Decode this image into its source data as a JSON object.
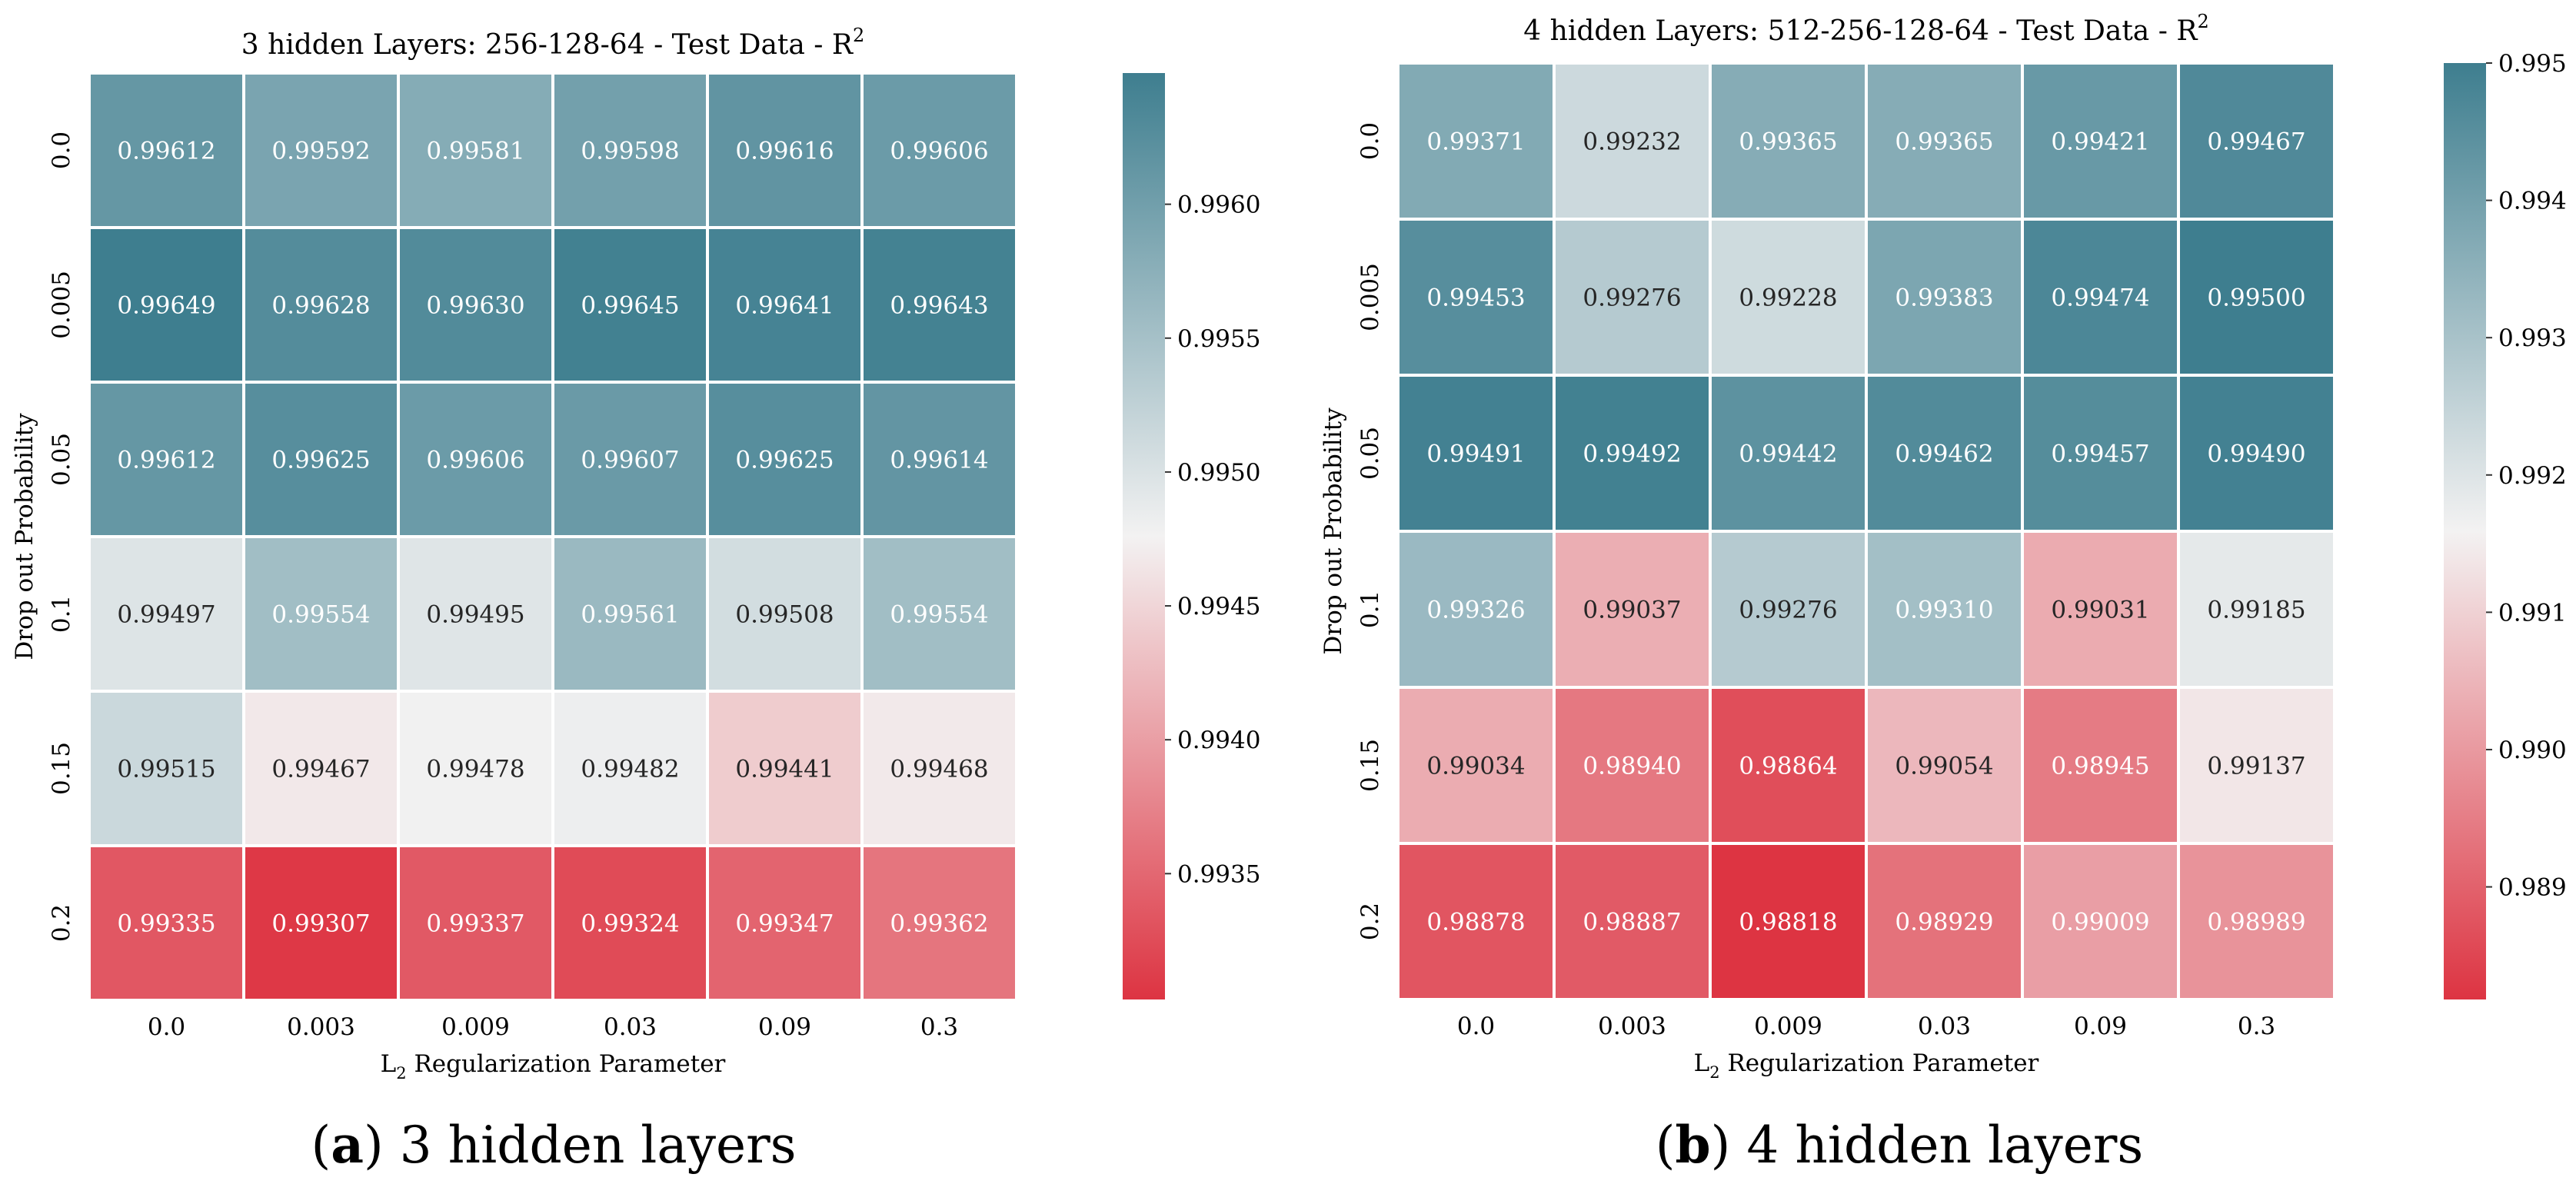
{
  "chart_data": [
    {
      "type": "heatmap",
      "title": "3 hidden Layers: 256-128-64 - Test Data - R",
      "title_superscript": "2",
      "xlabel_prefix": "L",
      "xlabel_subscript": "2",
      "xlabel_suffix": " Regularization Parameter",
      "ylabel": "Drop out Probability",
      "x_categories": [
        "0.0",
        "0.003",
        "0.009",
        "0.03",
        "0.09",
        "0.3"
      ],
      "y_categories": [
        "0.0",
        "0.005",
        "0.05",
        "0.1",
        "0.15",
        "0.2"
      ],
      "values": [
        [
          "0.99612",
          "0.99592",
          "0.99581",
          "0.99598",
          "0.99616",
          "0.99606"
        ],
        [
          "0.99649",
          "0.99628",
          "0.99630",
          "0.99645",
          "0.99641",
          "0.99643"
        ],
        [
          "0.99612",
          "0.99625",
          "0.99606",
          "0.99607",
          "0.99625",
          "0.99614"
        ],
        [
          "0.99497",
          "0.99554",
          "0.99495",
          "0.99561",
          "0.99508",
          "0.99554"
        ],
        [
          "0.99515",
          "0.99467",
          "0.99478",
          "0.99482",
          "0.99441",
          "0.99468"
        ],
        [
          "0.99335",
          "0.99307",
          "0.99337",
          "0.99324",
          "0.99347",
          "0.99362"
        ]
      ],
      "colorbar_range": [
        0.99303,
        0.99649
      ],
      "colorbar_ticks": [
        "0.9935",
        "0.9940",
        "0.9945",
        "0.9950",
        "0.9955",
        "0.9960"
      ],
      "colormap": [
        "#dd3442",
        "#f3f2f2",
        "#3e7e8f"
      ],
      "caption_letter": "a",
      "caption_text": " 3 hidden layers"
    },
    {
      "type": "heatmap",
      "title": "4 hidden Layers: 512-256-128-64 - Test Data - R",
      "title_superscript": "2",
      "xlabel_prefix": "L",
      "xlabel_subscript": "2",
      "xlabel_suffix": " Regularization Parameter",
      "ylabel": "Drop out Probability",
      "x_categories": [
        "0.0",
        "0.003",
        "0.009",
        "0.03",
        "0.09",
        "0.3"
      ],
      "y_categories": [
        "0.0",
        "0.005",
        "0.05",
        "0.1",
        "0.15",
        "0.2"
      ],
      "values": [
        [
          "0.99371",
          "0.99232",
          "0.99365",
          "0.99365",
          "0.99421",
          "0.99467"
        ],
        [
          "0.99453",
          "0.99276",
          "0.99228",
          "0.99383",
          "0.99474",
          "0.99500"
        ],
        [
          "0.99491",
          "0.99492",
          "0.99442",
          "0.99462",
          "0.99457",
          "0.99490"
        ],
        [
          "0.99326",
          "0.99037",
          "0.99276",
          "0.99310",
          "0.99031",
          "0.99185"
        ],
        [
          "0.99034",
          "0.98940",
          "0.98864",
          "0.99054",
          "0.98945",
          "0.99137"
        ],
        [
          "0.98878",
          "0.98887",
          "0.98818",
          "0.98929",
          "0.99009",
          "0.98989"
        ]
      ],
      "colorbar_range": [
        0.98818,
        0.995
      ],
      "colorbar_ticks": [
        "0.989",
        "0.990",
        "0.991",
        "0.992",
        "0.993",
        "0.994",
        "0.995"
      ],
      "colormap": [
        "#dd3442",
        "#f3f2f2",
        "#3e7e8f"
      ],
      "caption_letter": "b",
      "caption_text": " 4 hidden layers"
    }
  ]
}
